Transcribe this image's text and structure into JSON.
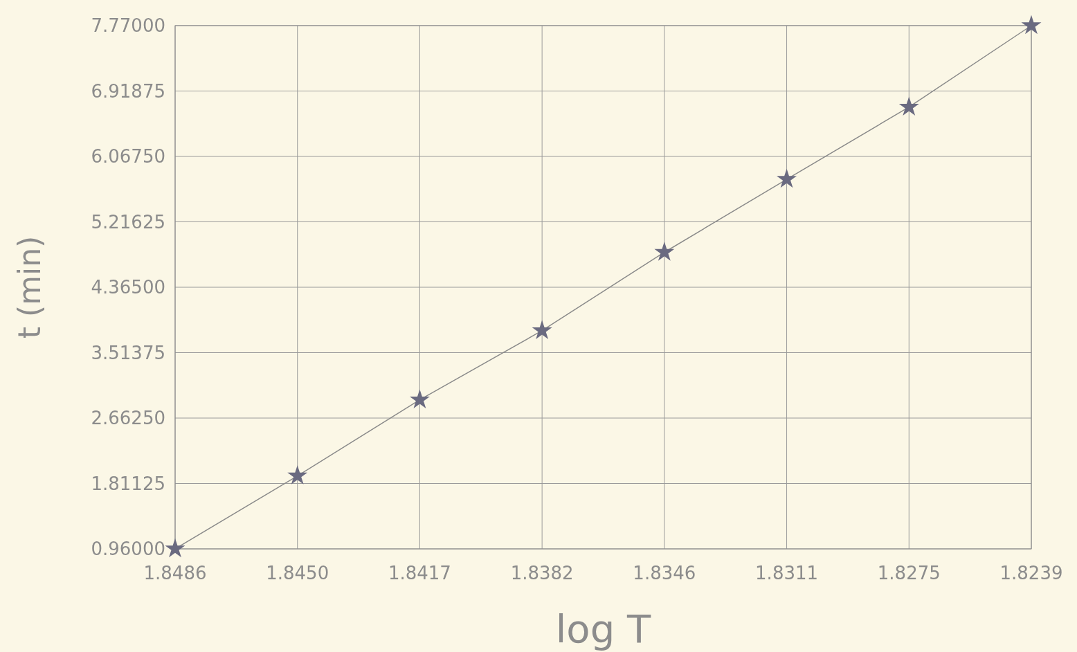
{
  "chart_data": {
    "type": "line",
    "xlabel": "log T",
    "ylabel": "t (min)",
    "categories": [
      "1.8486",
      "1.8450",
      "1.8417",
      "1.8382",
      "1.8346",
      "1.8311",
      "1.8275",
      "1.8239"
    ],
    "series": [
      {
        "color": "#6a6a80",
        "values": [
          0.96,
          1.91,
          2.9,
          3.8,
          4.82,
          5.77,
          6.71,
          7.77
        ]
      }
    ],
    "ylim": [
      0.96,
      7.77
    ],
    "yticks": [
      {
        "value": 0.96,
        "label": "0.96000"
      },
      {
        "value": 1.81125,
        "label": "1.81125"
      },
      {
        "value": 2.6625,
        "label": "2.66250"
      },
      {
        "value": 3.51375,
        "label": "3.51375"
      },
      {
        "value": 4.365,
        "label": "4.36500"
      },
      {
        "value": 5.21625,
        "label": "5.21625"
      },
      {
        "value": 6.0675,
        "label": "6.06750"
      },
      {
        "value": 6.91875,
        "label": "6.91875"
      },
      {
        "value": 7.77,
        "label": "7.77000"
      }
    ],
    "grid": true,
    "marker": "star",
    "line_style": "solid"
  }
}
